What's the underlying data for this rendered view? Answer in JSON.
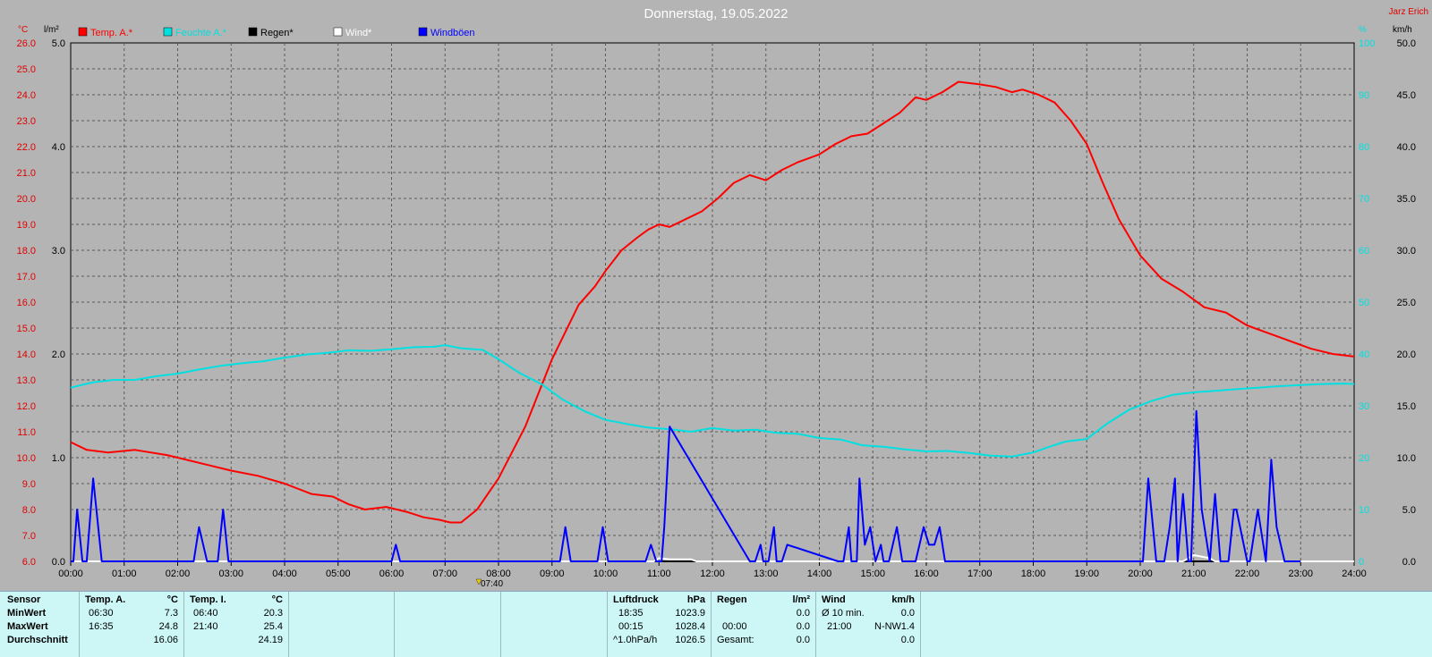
{
  "title": "Donnerstag, 19.05.2022",
  "author": "Jarz Erich",
  "units": {
    "temp": "°C",
    "rain": "l/m²",
    "hum": "%",
    "wind": "km/h"
  },
  "marker_time": "07:40",
  "legend": [
    {
      "label": "Temp. A.*",
      "color": "#ff0000"
    },
    {
      "label": "Feuchte A.*",
      "color": "#00e0e0"
    },
    {
      "label": "Regen*",
      "color": "#000000"
    },
    {
      "label": "Wind*",
      "color": "#ffffff"
    },
    {
      "label": "Windböen",
      "color": "#0000ff"
    }
  ],
  "chart_data": {
    "type": "line",
    "title": "Donnerstag, 19.05.2022",
    "x_ticks": [
      "00:00",
      "01:00",
      "02:00",
      "03:00",
      "04:00",
      "05:00",
      "06:00",
      "07:00",
      "08:00",
      "09:00",
      "10:00",
      "11:00",
      "12:00",
      "13:00",
      "14:00",
      "15:00",
      "16:00",
      "17:00",
      "18:00",
      "19:00",
      "20:00",
      "21:00",
      "22:00",
      "23:00",
      "24:00"
    ],
    "x_range_hours": [
      0,
      24
    ],
    "grid": true,
    "axes": {
      "temp": {
        "label": "°C",
        "range": [
          6.0,
          26.0
        ],
        "ticks": [
          "26.0",
          "25.0",
          "24.0",
          "23.0",
          "22.0",
          "21.0",
          "20.0",
          "19.0",
          "18.0",
          "17.0",
          "16.0",
          "15.0",
          "14.0",
          "13.0",
          "12.0",
          "11.0",
          "10.0",
          "9.0",
          "8.0",
          "7.0",
          "6.0"
        ]
      },
      "rain": {
        "label": "l/m²",
        "range": [
          0.0,
          5.0
        ],
        "ticks": [
          "5.0",
          "4.0",
          "3.0",
          "2.0",
          "1.0",
          "0.0"
        ]
      },
      "hum": {
        "label": "%",
        "range": [
          0,
          100
        ],
        "ticks": [
          "100",
          "90",
          "80",
          "70",
          "60",
          "50",
          "40",
          "30",
          "20",
          "10",
          "0"
        ]
      },
      "wind": {
        "label": "km/h",
        "range": [
          0.0,
          50.0
        ],
        "ticks": [
          "50.0",
          "45.0",
          "40.0",
          "35.0",
          "30.0",
          "25.0",
          "20.0",
          "15.0",
          "10.0",
          "5.0",
          "0.0"
        ]
      }
    },
    "series": [
      {
        "name": "Temp. A.*",
        "axis": "temp",
        "color": "#ff0000",
        "x": [
          0,
          0.3,
          0.7,
          1.2,
          1.8,
          2.2,
          2.6,
          3.0,
          3.5,
          4.0,
          4.5,
          4.9,
          5.2,
          5.5,
          5.9,
          6.3,
          6.6,
          6.9,
          7.1,
          7.3,
          7.6,
          8.0,
          8.5,
          9.0,
          9.5,
          9.8,
          10.0,
          10.3,
          10.6,
          10.8,
          11.0,
          11.2,
          11.5,
          11.8,
          12.1,
          12.4,
          12.7,
          13.0,
          13.3,
          13.6,
          14.0,
          14.3,
          14.6,
          14.9,
          15.2,
          15.5,
          15.8,
          16.0,
          16.3,
          16.6,
          17.0,
          17.3,
          17.6,
          17.8,
          18.1,
          18.4,
          18.7,
          19.0,
          19.3,
          19.6,
          20.0,
          20.4,
          20.8,
          21.2,
          21.6,
          22.0,
          22.4,
          22.8,
          23.2,
          23.6,
          24.0
        ],
        "values": [
          10.6,
          10.3,
          10.2,
          10.3,
          10.1,
          9.9,
          9.7,
          9.5,
          9.3,
          9.0,
          8.6,
          8.5,
          8.2,
          8.0,
          8.1,
          7.9,
          7.7,
          7.6,
          7.5,
          7.5,
          8.0,
          9.2,
          11.2,
          13.8,
          15.9,
          16.6,
          17.2,
          18.0,
          18.5,
          18.8,
          19.0,
          18.9,
          19.2,
          19.5,
          20.0,
          20.6,
          20.9,
          20.7,
          21.1,
          21.4,
          21.7,
          22.1,
          22.4,
          22.5,
          22.9,
          23.3,
          23.9,
          23.8,
          24.1,
          24.5,
          24.4,
          24.3,
          24.1,
          24.2,
          24.0,
          23.7,
          23.0,
          22.1,
          20.6,
          19.2,
          17.8,
          16.9,
          16.4,
          15.8,
          15.6,
          15.1,
          14.8,
          14.5,
          14.2,
          14.0,
          13.9
        ]
      },
      {
        "name": "Feuchte A.*",
        "axis": "hum",
        "color": "#00e0e0",
        "x": [
          0,
          0.4,
          0.8,
          1.2,
          1.6,
          2.0,
          2.4,
          2.8,
          3.2,
          3.6,
          4.0,
          4.4,
          4.8,
          5.2,
          5.6,
          6.0,
          6.4,
          6.8,
          7.0,
          7.3,
          7.7,
          8.0,
          8.4,
          8.8,
          9.2,
          9.6,
          10.0,
          10.4,
          10.8,
          11.2,
          11.6,
          12.0,
          12.4,
          12.8,
          13.2,
          13.6,
          14.0,
          14.4,
          14.8,
          15.2,
          15.6,
          16.0,
          16.4,
          16.8,
          17.2,
          17.6,
          18.0,
          18.3,
          18.6,
          19.0,
          19.4,
          19.8,
          20.2,
          20.6,
          21.0,
          21.4,
          21.8,
          22.2,
          22.6,
          23.0,
          23.4,
          23.8,
          24.0
        ],
        "values": [
          33.5,
          34.5,
          35.0,
          35.0,
          35.7,
          36.2,
          37.0,
          37.7,
          38.2,
          38.6,
          39.3,
          39.9,
          40.2,
          40.7,
          40.6,
          40.9,
          41.3,
          41.4,
          41.7,
          41.1,
          40.8,
          39.0,
          36.3,
          34.2,
          31.2,
          29.0,
          27.3,
          26.5,
          25.8,
          25.5,
          25.0,
          25.7,
          25.2,
          25.4,
          24.8,
          24.6,
          23.8,
          23.5,
          22.4,
          22.1,
          21.6,
          21.2,
          21.3,
          20.9,
          20.4,
          20.2,
          21.0,
          22.1,
          23.1,
          23.6,
          26.7,
          29.3,
          30.9,
          32.1,
          32.6,
          32.9,
          33.2,
          33.5,
          33.8,
          34.0,
          34.2,
          34.3,
          34.2
        ]
      },
      {
        "name": "Regen*",
        "axis": "rain",
        "color": "#000000",
        "x": [
          0,
          24
        ],
        "values": [
          0,
          0
        ]
      },
      {
        "name": "Wind*",
        "axis": "wind",
        "color": "#ffffff",
        "x": [
          0,
          10.9,
          11.0,
          11.2,
          11.6,
          11.7,
          20.8,
          21.0,
          21.3,
          21.4,
          24.0
        ],
        "values": [
          0,
          0,
          0.3,
          0.2,
          0.2,
          0,
          0,
          0.6,
          0.3,
          0,
          0
        ]
      },
      {
        "name": "Windböen",
        "axis": "wind",
        "color": "#0000ff",
        "x": [
          0,
          0.05,
          0.12,
          0.22,
          0.3,
          0.42,
          0.58,
          2.3,
          2.4,
          2.55,
          2.75,
          2.85,
          2.95,
          6.0,
          6.08,
          6.16,
          9.15,
          9.25,
          9.35,
          9.85,
          9.95,
          10.05,
          10.75,
          10.85,
          10.95,
          11.05,
          11.1,
          11.2,
          12.7,
          12.8,
          12.9,
          12.95,
          13.05,
          13.15,
          13.2,
          13.3,
          13.4,
          14.35,
          14.45,
          14.55,
          14.6,
          14.7,
          14.75,
          14.85,
          14.95,
          15.05,
          15.15,
          15.2,
          15.3,
          15.45,
          15.55,
          15.8,
          15.95,
          16.05,
          16.15,
          16.25,
          16.35,
          20.05,
          20.15,
          20.3,
          20.45,
          20.55,
          20.65,
          20.7,
          20.8,
          20.9,
          20.95,
          21.05,
          21.15,
          21.3,
          21.4,
          21.5,
          21.65,
          21.75,
          21.8,
          22.0,
          22.05,
          22.2,
          22.35,
          22.45,
          22.55,
          22.7,
          23.0
        ],
        "values": [
          0,
          0,
          5,
          0,
          0,
          8,
          0,
          0,
          3.3,
          0,
          0,
          5,
          0,
          0,
          1.6,
          0,
          0,
          3.3,
          0,
          0,
          3.3,
          0,
          0,
          1.6,
          0,
          0,
          3.3,
          13,
          0,
          0,
          1.6,
          0,
          0,
          3.3,
          0,
          0,
          1.6,
          0,
          0,
          3.3,
          0,
          0,
          8,
          1.6,
          3.3,
          0,
          1.6,
          0,
          0,
          3.3,
          0,
          0,
          3.3,
          1.6,
          1.6,
          3.3,
          0,
          0,
          8,
          0,
          0,
          3.3,
          8,
          0,
          6.5,
          0,
          0,
          14.5,
          5,
          0,
          6.5,
          0,
          0,
          5,
          5,
          0,
          0,
          5,
          0,
          9.8,
          3.3,
          0,
          0
        ]
      }
    ]
  },
  "table": {
    "sensor": {
      "header": "Sensor",
      "rows": [
        "MinWert",
        "MaxWert",
        "Durchschnitt"
      ]
    },
    "temp_a": {
      "header": "Temp. A.",
      "unit": "°C",
      "rows": [
        [
          "06:30",
          "7.3"
        ],
        [
          "16:35",
          "24.8"
        ],
        [
          "",
          "16.06"
        ]
      ]
    },
    "temp_i": {
      "header": "Temp. I.",
      "unit": "°C",
      "rows": [
        [
          "06:40",
          "20.3"
        ],
        [
          "21:40",
          "25.4"
        ],
        [
          "",
          "24.19"
        ]
      ]
    },
    "luftdruck": {
      "header": "Luftdruck",
      "unit": "hPa",
      "rows": [
        [
          "18:35",
          "1023.9"
        ],
        [
          "00:15",
          "1028.4"
        ],
        [
          "^1.0hPa/h",
          "1026.5"
        ]
      ]
    },
    "regen": {
      "header": "Regen",
      "unit": "l/m²",
      "rows": [
        [
          "",
          "0.0"
        ],
        [
          "00:00",
          "0.0"
        ],
        [
          "Gesamt:",
          "0.0"
        ]
      ]
    },
    "wind": {
      "header": "Wind",
      "unit": "km/h",
      "rows": [
        [
          "Ø 10 min.",
          "",
          "0.0"
        ],
        [
          "21:00",
          "N-NW",
          "1.4"
        ],
        [
          "",
          "",
          "0.0"
        ]
      ]
    }
  }
}
